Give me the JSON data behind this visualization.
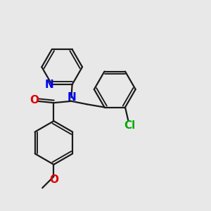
{
  "bg_color": "#e8e8e8",
  "bond_color": "#1a1a1a",
  "N_color": "#0000ee",
  "O_color": "#dd0000",
  "Cl_color": "#00aa00",
  "bond_width": 1.6,
  "font_size": 10,
  "fig_size": [
    3.0,
    3.0
  ],
  "dpi": 100,
  "xlim": [
    0,
    10
  ],
  "ylim": [
    0,
    10
  ]
}
